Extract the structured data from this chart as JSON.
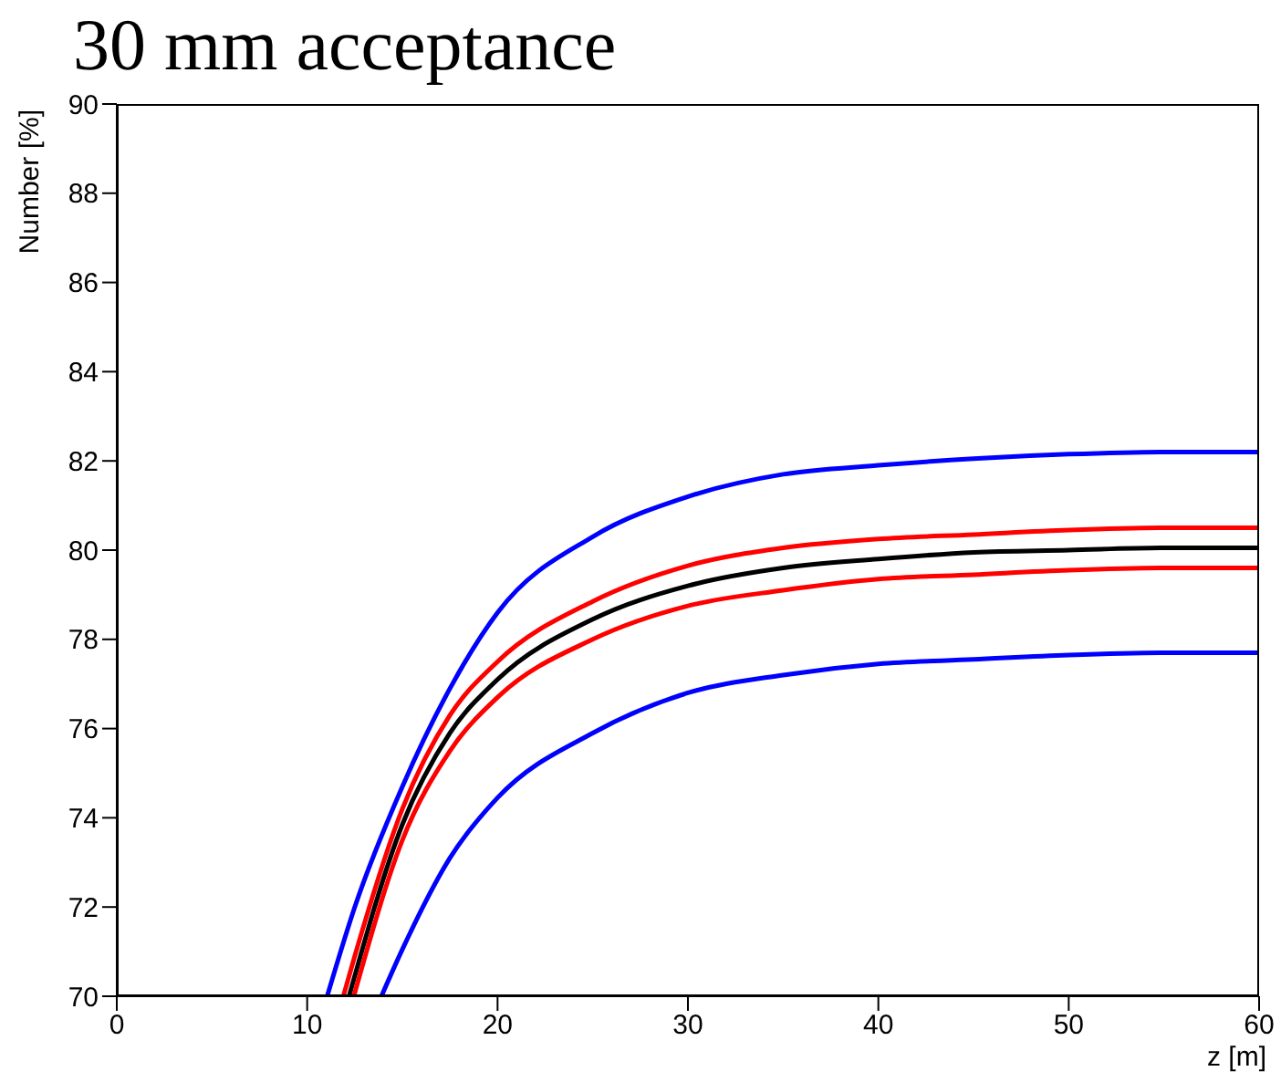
{
  "chart_data": {
    "type": "line",
    "title": "30 mm acceptance",
    "xlabel": "z [m]",
    "ylabel": "Number [%]",
    "xlim": [
      0,
      60
    ],
    "ylim": [
      70,
      90
    ],
    "xticks": [
      0,
      10,
      20,
      30,
      40,
      50,
      60
    ],
    "yticks": [
      70,
      72,
      74,
      76,
      78,
      80,
      82,
      84,
      86,
      88,
      90
    ],
    "grid": false,
    "legend": false,
    "marker": "none",
    "line_style": "solid",
    "series": [
      {
        "color": "#0000ff",
        "x": [
          11.05,
          12.5,
          15,
          17.5,
          20,
          25,
          30,
          35,
          40,
          45,
          50,
          55,
          60
        ],
        "values": [
          70,
          72.0,
          74.7,
          76.9,
          78.6,
          80.3,
          81.2,
          81.7,
          81.9,
          82.05,
          82.15,
          82.2,
          82.2
        ]
      },
      {
        "color": "#ff0000",
        "x": [
          11.9,
          12.5,
          15,
          17.5,
          20,
          25,
          30,
          35,
          40,
          45,
          50,
          55,
          60
        ],
        "values": [
          70,
          70.9,
          74.2,
          76.3,
          77.5,
          78.85,
          79.65,
          80.05,
          80.25,
          80.35,
          80.45,
          80.5,
          80.5
        ]
      },
      {
        "color": "#000000",
        "x": [
          12.2,
          15,
          17.5,
          20,
          25,
          30,
          35,
          40,
          45,
          50,
          55,
          60
        ],
        "values": [
          70,
          73.85,
          75.9,
          77.1,
          78.45,
          79.2,
          79.6,
          79.8,
          79.95,
          80.0,
          80.05,
          80.05
        ]
      },
      {
        "color": "#ff0000",
        "x": [
          12.45,
          15,
          17.5,
          20,
          25,
          30,
          35,
          40,
          45,
          50,
          55,
          60
        ],
        "values": [
          70,
          73.5,
          75.5,
          76.7,
          78.0,
          78.75,
          79.1,
          79.35,
          79.45,
          79.55,
          79.6,
          79.6
        ]
      },
      {
        "color": "#0000ff",
        "x": [
          13.9,
          15,
          17.5,
          20,
          25,
          30,
          35,
          40,
          45,
          50,
          55,
          60
        ],
        "values": [
          70,
          71.05,
          73.1,
          74.45,
          75.9,
          76.8,
          77.2,
          77.45,
          77.55,
          77.65,
          77.7,
          77.7
        ]
      }
    ]
  }
}
